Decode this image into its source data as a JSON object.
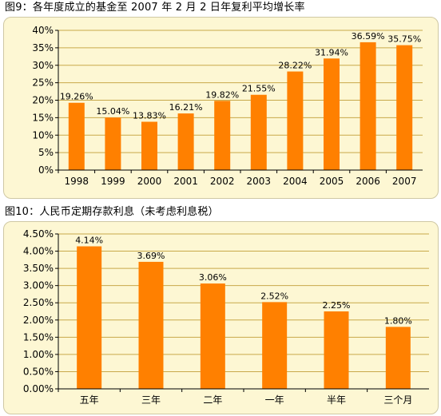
{
  "charts": [
    {
      "title": "图9：各年度成立的基金至 2007 年 2 月 2 日年复利平均增长率",
      "chart_data": {
        "type": "bar",
        "categories": [
          "1998",
          "1999",
          "2000",
          "2001",
          "2002",
          "2003",
          "2004",
          "2005",
          "2006",
          "2007"
        ],
        "values": [
          19.26,
          15.04,
          13.83,
          16.21,
          19.82,
          21.55,
          28.22,
          31.94,
          36.59,
          35.75
        ],
        "value_labels": [
          "19.26%",
          "15.04%",
          "13.83%",
          "16.21%",
          "19.82%",
          "21.55%",
          "28.22%",
          "31.94%",
          "36.59%",
          "35.75%"
        ],
        "y_ticks": [
          "0%",
          "5%",
          "10%",
          "15%",
          "20%",
          "25%",
          "30%",
          "35%",
          "40%"
        ],
        "ylim": [
          0,
          40
        ],
        "bar_color": "#ff8000",
        "grid": true,
        "xlabel": "",
        "ylabel": ""
      }
    },
    {
      "title": "图10：人民币定期存款利息（未考虑利息税）",
      "chart_data": {
        "type": "bar",
        "categories": [
          "五年",
          "三年",
          "二年",
          "一年",
          "半年",
          "三个月"
        ],
        "values": [
          4.14,
          3.69,
          3.06,
          2.52,
          2.25,
          1.8
        ],
        "value_labels": [
          "4.14%",
          "3.69%",
          "3.06%",
          "2.52%",
          "2.25%",
          "1.80%"
        ],
        "y_ticks": [
          "0.00%",
          "0.50%",
          "1.00%",
          "1.50%",
          "2.00%",
          "2.50%",
          "3.00%",
          "3.50%",
          "4.00%",
          "4.50%"
        ],
        "ylim": [
          0,
          4.5
        ],
        "bar_color": "#ff8000",
        "grid": true,
        "xlabel": "",
        "ylabel": ""
      }
    }
  ]
}
